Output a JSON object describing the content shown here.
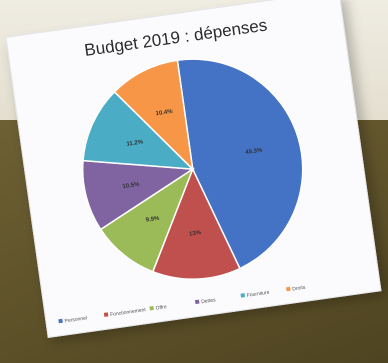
{
  "chart_data": {
    "type": "pie",
    "title": "Budget 2019 : dépenses",
    "categories": [
      "Personnel",
      "Fonctionnement",
      "Offre",
      "Dettes",
      "Fourniture",
      "Droits"
    ],
    "values": [
      45.3,
      13.0,
      9.9,
      10.5,
      11.2,
      10.4
    ],
    "value_labels": [
      "45.3%",
      "13%",
      "9.9%",
      "10.5%",
      "11.2%",
      "10.4%"
    ],
    "colors": [
      "#4472c4",
      "#c0504d",
      "#9bbb59",
      "#8064a2",
      "#4bacc6",
      "#f79646"
    ],
    "legend_position": "bottom"
  }
}
